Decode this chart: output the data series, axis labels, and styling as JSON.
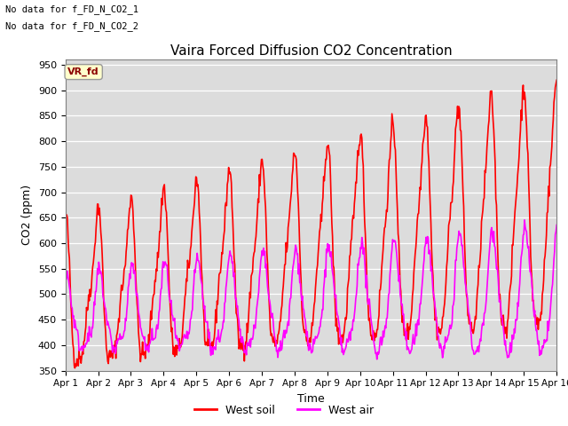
{
  "title": "Vaira Forced Diffusion CO2 Concentration",
  "xlabel": "Time",
  "ylabel": "CO2 (ppm)",
  "ylim": [
    350,
    960
  ],
  "yticks": [
    350,
    400,
    450,
    500,
    550,
    600,
    650,
    700,
    750,
    800,
    850,
    900,
    950
  ],
  "xtick_labels": [
    "Apr 1",
    "Apr 2",
    "Apr 3",
    "Apr 4",
    "Apr 5",
    "Apr 6",
    "Apr 7",
    "Apr 8",
    "Apr 9",
    "Apr 10",
    "Apr 11",
    "Apr 12",
    "Apr 13",
    "Apr 14",
    "Apr 15",
    "Apr 16"
  ],
  "annotation1": "No data for f_FD_N_CO2_1",
  "annotation2": "No data for f_FD_N_CO2_2",
  "vr_fd_label": "VR_fd",
  "soil_color": "#ff0000",
  "air_color": "#ff00ff",
  "soil_label": "West soil",
  "air_label": "West air",
  "bg_color": "#dcdcdc",
  "n_points": 720,
  "n_days": 15,
  "line_width": 1.2
}
